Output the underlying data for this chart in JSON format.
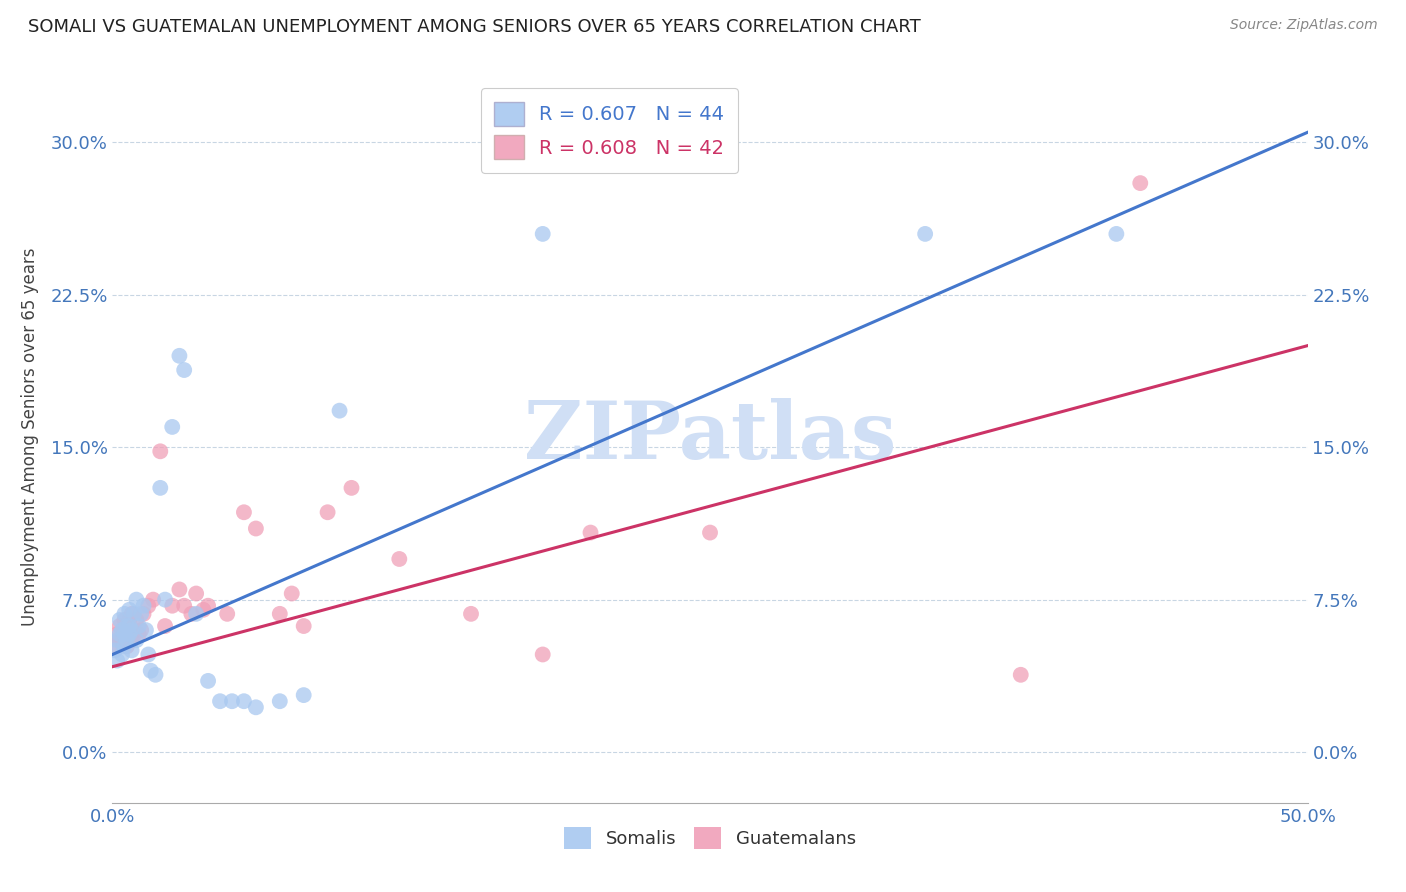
{
  "title": "SOMALI VS GUATEMALAN UNEMPLOYMENT AMONG SENIORS OVER 65 YEARS CORRELATION CHART",
  "source": "Source: ZipAtlas.com",
  "ylabel": "Unemployment Among Seniors over 65 years",
  "xlim": [
    0.0,
    0.5
  ],
  "ylim": [
    -0.025,
    0.335
  ],
  "xticks": [
    0.0,
    0.5
  ],
  "xtick_labels": [
    "0.0%",
    "50.0%"
  ],
  "yticks": [
    0.0,
    0.075,
    0.15,
    0.225,
    0.3
  ],
  "ytick_labels": [
    "0.0%",
    "7.5%",
    "15.0%",
    "22.5%",
    "30.0%"
  ],
  "somali_R": 0.607,
  "somali_N": 44,
  "guatemalan_R": 0.608,
  "guatemalan_N": 42,
  "somali_color": "#a8c8f0",
  "guatemalan_color": "#f0a0b8",
  "somali_line_color": "#4477cc",
  "guatemalan_line_color": "#cc3366",
  "watermark": "ZIPatlas",
  "watermark_color": "#d0dff5",
  "background_color": "#ffffff",
  "somali_x": [
    0.001,
    0.002,
    0.002,
    0.003,
    0.003,
    0.004,
    0.004,
    0.005,
    0.005,
    0.005,
    0.006,
    0.006,
    0.007,
    0.007,
    0.007,
    0.008,
    0.008,
    0.009,
    0.01,
    0.01,
    0.011,
    0.012,
    0.013,
    0.014,
    0.015,
    0.016,
    0.018,
    0.02,
    0.022,
    0.025,
    0.028,
    0.03,
    0.035,
    0.04,
    0.045,
    0.05,
    0.055,
    0.06,
    0.07,
    0.08,
    0.095,
    0.18,
    0.34,
    0.42
  ],
  "somali_y": [
    0.05,
    0.045,
    0.055,
    0.058,
    0.065,
    0.048,
    0.06,
    0.052,
    0.058,
    0.068,
    0.055,
    0.062,
    0.058,
    0.062,
    0.07,
    0.05,
    0.06,
    0.068,
    0.055,
    0.075,
    0.062,
    0.068,
    0.072,
    0.06,
    0.048,
    0.04,
    0.038,
    0.13,
    0.075,
    0.16,
    0.195,
    0.188,
    0.068,
    0.035,
    0.025,
    0.025,
    0.025,
    0.022,
    0.025,
    0.028,
    0.168,
    0.255,
    0.255,
    0.255
  ],
  "guatemalan_x": [
    0.001,
    0.002,
    0.003,
    0.003,
    0.004,
    0.005,
    0.005,
    0.006,
    0.007,
    0.008,
    0.008,
    0.009,
    0.01,
    0.011,
    0.012,
    0.013,
    0.015,
    0.017,
    0.02,
    0.022,
    0.025,
    0.028,
    0.03,
    0.033,
    0.035,
    0.038,
    0.04,
    0.048,
    0.055,
    0.06,
    0.07,
    0.075,
    0.08,
    0.09,
    0.1,
    0.12,
    0.15,
    0.18,
    0.2,
    0.25,
    0.38,
    0.43
  ],
  "guatemalan_y": [
    0.052,
    0.058,
    0.055,
    0.062,
    0.055,
    0.058,
    0.065,
    0.052,
    0.065,
    0.055,
    0.068,
    0.058,
    0.065,
    0.058,
    0.06,
    0.068,
    0.072,
    0.075,
    0.148,
    0.062,
    0.072,
    0.08,
    0.072,
    0.068,
    0.078,
    0.07,
    0.072,
    0.068,
    0.118,
    0.11,
    0.068,
    0.078,
    0.062,
    0.118,
    0.13,
    0.095,
    0.068,
    0.048,
    0.108,
    0.108,
    0.038,
    0.28
  ],
  "somali_line_x0": 0.0,
  "somali_line_y0": 0.048,
  "somali_line_x1": 0.5,
  "somali_line_y1": 0.305,
  "guatemalan_line_x0": 0.0,
  "guatemalan_line_y0": 0.042,
  "guatemalan_line_x1": 0.5,
  "guatemalan_line_y1": 0.2
}
